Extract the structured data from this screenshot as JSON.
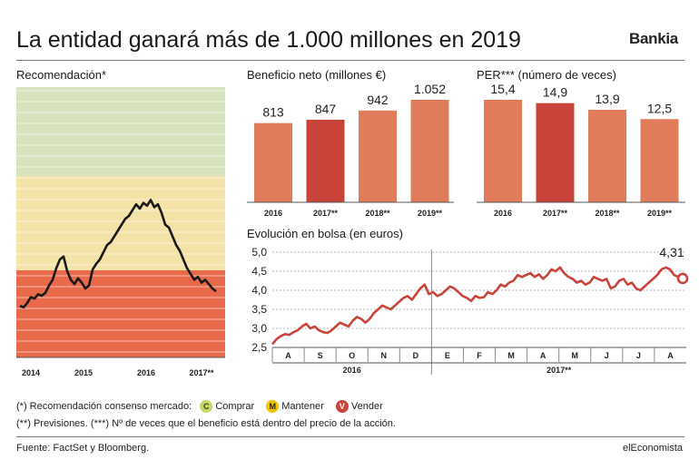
{
  "header": {
    "title": "La entidad ganará más de 1.000 millones en 2019",
    "brand": "Bankia"
  },
  "colors": {
    "bar": "#e07b5c",
    "bar_highlight": "#c8443a",
    "line": "#c8443a",
    "zone_buy": "#d6e3bd",
    "zone_hold": "#f4e3a8",
    "zone_sell": "#e96a4a"
  },
  "legend": {
    "note": "(*) Recomendación consenso mercado:",
    "buy": "Comprar",
    "buy_icon": "C",
    "hold": "Mantener",
    "hold_icon": "M",
    "sell": "Vender",
    "sell_icon": "V",
    "note2": "(**) Previsiones. (***) Nº de veces que el beneficio está dentro del precio de la acción."
  },
  "footer": {
    "source": "Fuente: FactSet y Bloomberg.",
    "publisher": "elEconomista"
  },
  "chart_data": [
    {
      "type": "line",
      "title": "Recomendación*",
      "x_labels": [
        "2014",
        "2015",
        "2016",
        "2017**"
      ],
      "zones": [
        "Comprar",
        "Mantener",
        "Vender"
      ],
      "values": [
        0.18,
        0.17,
        0.2,
        0.24,
        0.23,
        0.26,
        0.25,
        0.27,
        0.32,
        0.36,
        0.44,
        0.5,
        0.52,
        0.42,
        0.36,
        0.33,
        0.37,
        0.34,
        0.3,
        0.32,
        0.43,
        0.47,
        0.5,
        0.55,
        0.6,
        0.62,
        0.66,
        0.7,
        0.74,
        0.78,
        0.8,
        0.84,
        0.88,
        0.85,
        0.89,
        0.87,
        0.91,
        0.86,
        0.88,
        0.82,
        0.74,
        0.72,
        0.66,
        0.6,
        0.56,
        0.5,
        0.44,
        0.4,
        0.36,
        0.38,
        0.34,
        0.36,
        0.33,
        0.3,
        0.28
      ]
    },
    {
      "type": "bar",
      "title": "Beneficio neto (millones €)",
      "categories": [
        "2016",
        "2017**",
        "2018**",
        "2019**"
      ],
      "values": [
        813,
        847,
        942,
        1052
      ],
      "value_labels": [
        "813",
        "847",
        "942",
        "1.052"
      ],
      "highlight_index": 1
    },
    {
      "type": "bar",
      "title": "PER*** (número de veces)",
      "categories": [
        "2016",
        "2017**",
        "2018**",
        "2019**"
      ],
      "values": [
        15.4,
        14.9,
        13.9,
        12.5
      ],
      "value_labels": [
        "15,4",
        "14,9",
        "13,9",
        "12,5"
      ],
      "highlight_index": 1
    },
    {
      "type": "line",
      "title": "Evolución en bolsa (en euros)",
      "y_ticks": [
        2.5,
        3.0,
        3.5,
        4.0,
        4.5,
        5.0
      ],
      "y_tick_labels": [
        "2,5",
        "3,0",
        "3,5",
        "4,0",
        "4,5",
        "5,0"
      ],
      "ylim": [
        2.5,
        5.0
      ],
      "months": [
        "A",
        "S",
        "O",
        "N",
        "D",
        "E",
        "F",
        "M",
        "A",
        "M",
        "J",
        "J",
        "A"
      ],
      "years": [
        "2016",
        "2017**"
      ],
      "last_value": 4.31,
      "last_label": "4,31",
      "grid": true,
      "values": [
        2.58,
        2.72,
        2.8,
        2.85,
        2.83,
        2.9,
        2.95,
        3.05,
        3.12,
        3.0,
        3.05,
        2.95,
        2.9,
        2.88,
        2.95,
        3.05,
        3.15,
        3.1,
        3.05,
        3.2,
        3.3,
        3.25,
        3.15,
        3.25,
        3.4,
        3.5,
        3.6,
        3.55,
        3.5,
        3.6,
        3.7,
        3.8,
        3.85,
        3.75,
        3.9,
        4.05,
        4.15,
        3.9,
        3.95,
        3.85,
        3.9,
        4.0,
        4.1,
        4.05,
        3.95,
        3.85,
        3.8,
        3.72,
        3.85,
        3.8,
        3.82,
        3.95,
        3.9,
        4.0,
        4.15,
        4.1,
        4.2,
        4.25,
        4.4,
        4.35,
        4.4,
        4.45,
        4.35,
        4.42,
        4.3,
        4.4,
        4.55,
        4.5,
        4.6,
        4.45,
        4.35,
        4.3,
        4.2,
        4.25,
        4.15,
        4.2,
        4.35,
        4.3,
        4.25,
        4.3,
        4.05,
        4.1,
        4.25,
        4.3,
        4.15,
        4.2,
        4.05,
        4.0,
        4.1,
        4.2,
        4.3,
        4.4,
        4.55,
        4.6,
        4.55,
        4.4,
        4.35,
        4.31
      ]
    }
  ]
}
